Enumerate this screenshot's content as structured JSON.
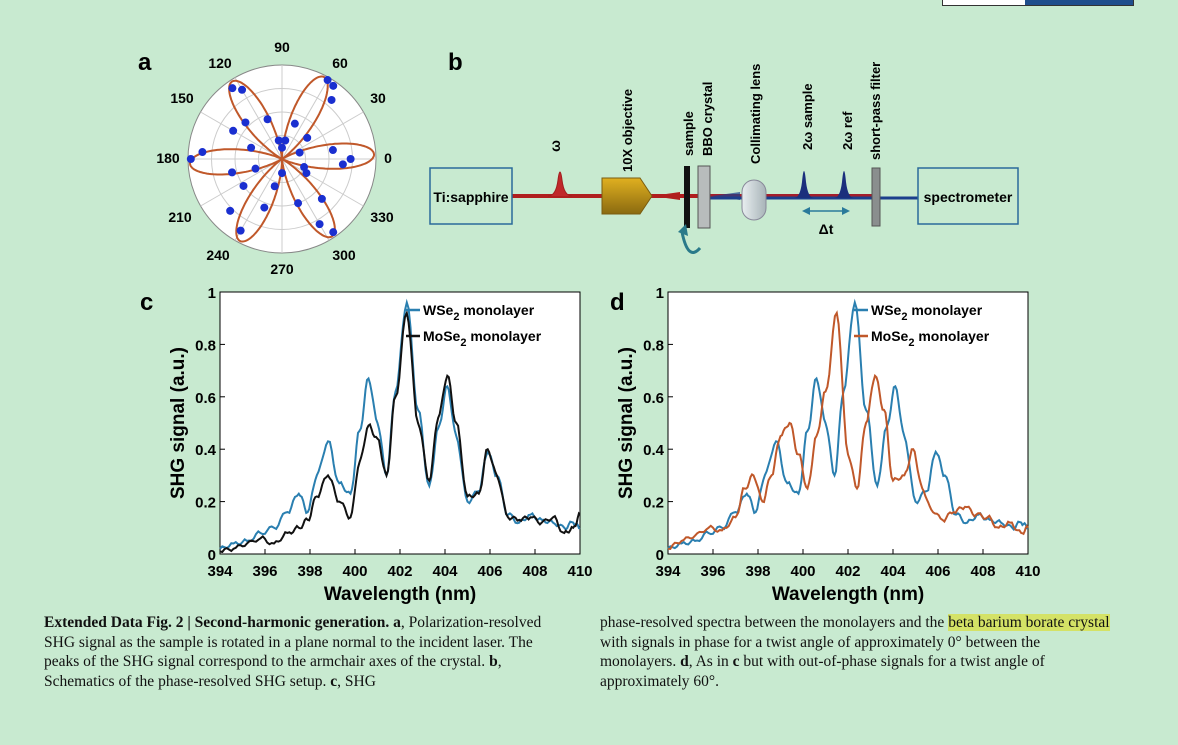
{
  "panels": {
    "a": "a",
    "b": "b",
    "c": "c",
    "d": "d"
  },
  "polar": {
    "angle_labels": [
      "90",
      "60",
      "30",
      "0",
      "330",
      "300",
      "270",
      "240",
      "210",
      "180",
      "150",
      "120"
    ]
  },
  "schematic": {
    "laser": "Ti:sapphire",
    "omega": "ω",
    "objective": "10X objective",
    "sample": "sample",
    "bbo": "BBO crystal",
    "lens": "Collimating lens",
    "two_omega_sample": "2ω sample",
    "two_omega_ref": "2ω ref",
    "filter": "short-pass filter",
    "spectrometer": "spectrometer",
    "delay": "Δt"
  },
  "chart_data": [
    {
      "type": "line",
      "panel": "c",
      "xlabel": "Wavelength (nm)",
      "ylabel": "SHG signal (a.u.)",
      "xlim": [
        394,
        410
      ],
      "ylim": [
        0,
        1
      ],
      "xticks": [
        "394",
        "396",
        "398",
        "400",
        "402",
        "404",
        "406",
        "408",
        "410"
      ],
      "yticks": [
        "0",
        "0.2",
        "0.4",
        "0.6",
        "0.8",
        "1"
      ],
      "legend_position": "top-right",
      "series": [
        {
          "name": "WSe2 monolayer",
          "color": "#2a7fb0",
          "x": [
            394,
            394.6,
            395.2,
            395.8,
            396.4,
            397,
            397.5,
            397.9,
            398.3,
            398.8,
            399.3,
            399.8,
            400.2,
            400.6,
            401.0,
            401.4,
            401.8,
            402.3,
            402.8,
            403.3,
            403.7,
            404.1,
            404.5,
            405.0,
            405.5,
            405.9,
            406.3,
            406.8,
            407.3,
            407.8,
            408.3,
            408.8,
            409.3,
            409.7,
            410
          ],
          "y": [
            0.02,
            0.04,
            0.05,
            0.08,
            0.1,
            0.16,
            0.23,
            0.16,
            0.3,
            0.43,
            0.27,
            0.23,
            0.47,
            0.67,
            0.5,
            0.3,
            0.62,
            0.96,
            0.55,
            0.26,
            0.48,
            0.64,
            0.45,
            0.2,
            0.24,
            0.39,
            0.3,
            0.15,
            0.12,
            0.15,
            0.13,
            0.12,
            0.1,
            0.12,
            0.1
          ]
        },
        {
          "name": "MoSe2 monolayer",
          "color": "#111111",
          "x": [
            394,
            394.6,
            395.2,
            395.8,
            396.4,
            397,
            397.5,
            397.9,
            398.3,
            398.8,
            399.3,
            399.8,
            400.2,
            400.6,
            401.0,
            401.4,
            401.8,
            402.3,
            402.8,
            403.3,
            403.7,
            404.1,
            404.5,
            405.0,
            405.5,
            405.9,
            406.3,
            406.8,
            407.3,
            407.8,
            408.3,
            408.8,
            409.3,
            409.7,
            410
          ],
          "y": [
            0.01,
            0.02,
            0.04,
            0.06,
            0.04,
            0.08,
            0.1,
            0.13,
            0.22,
            0.3,
            0.2,
            0.14,
            0.35,
            0.49,
            0.44,
            0.3,
            0.6,
            0.92,
            0.5,
            0.28,
            0.52,
            0.68,
            0.5,
            0.22,
            0.23,
            0.4,
            0.3,
            0.14,
            0.13,
            0.14,
            0.12,
            0.14,
            0.08,
            0.1,
            0.15
          ]
        }
      ]
    },
    {
      "type": "line",
      "panel": "d",
      "xlabel": "Wavelength (nm)",
      "ylabel": "SHG signal (a.u.)",
      "xlim": [
        394,
        410
      ],
      "ylim": [
        0,
        1
      ],
      "xticks": [
        "394",
        "396",
        "398",
        "400",
        "402",
        "404",
        "406",
        "408",
        "410"
      ],
      "yticks": [
        "0",
        "0.2",
        "0.4",
        "0.6",
        "0.8",
        "1"
      ],
      "legend_position": "top-right",
      "series": [
        {
          "name": "WSe2 monolayer",
          "color": "#2a7fb0",
          "x": [
            394,
            394.6,
            395.2,
            395.8,
            396.4,
            397,
            397.5,
            397.9,
            398.3,
            398.8,
            399.3,
            399.8,
            400.2,
            400.6,
            401.0,
            401.4,
            401.8,
            402.3,
            402.8,
            403.3,
            403.7,
            404.1,
            404.5,
            405.0,
            405.5,
            405.9,
            406.3,
            406.8,
            407.3,
            407.8,
            408.3,
            408.8,
            409.3,
            409.7,
            410
          ],
          "y": [
            0.02,
            0.04,
            0.05,
            0.08,
            0.1,
            0.16,
            0.23,
            0.16,
            0.3,
            0.43,
            0.27,
            0.23,
            0.47,
            0.67,
            0.5,
            0.3,
            0.62,
            0.96,
            0.55,
            0.26,
            0.48,
            0.64,
            0.45,
            0.2,
            0.24,
            0.39,
            0.3,
            0.15,
            0.12,
            0.15,
            0.13,
            0.12,
            0.1,
            0.12,
            0.1
          ]
        },
        {
          "name": "MoSe2 monolayer",
          "color": "#c0582a",
          "x": [
            394,
            394.6,
            395.2,
            395.8,
            396.4,
            397,
            397.4,
            397.8,
            398.2,
            398.6,
            399.0,
            399.4,
            399.8,
            400.2,
            400.6,
            401.0,
            401.5,
            402.0,
            402.4,
            402.8,
            403.2,
            403.6,
            404.0,
            404.5,
            404.9,
            405.3,
            405.7,
            406.2,
            406.7,
            407.2,
            407.7,
            408.2,
            408.7,
            409.2,
            409.7,
            410
          ],
          "y": [
            0.02,
            0.05,
            0.07,
            0.1,
            0.09,
            0.14,
            0.25,
            0.3,
            0.2,
            0.3,
            0.45,
            0.5,
            0.38,
            0.25,
            0.45,
            0.62,
            0.92,
            0.38,
            0.25,
            0.5,
            0.68,
            0.55,
            0.28,
            0.3,
            0.4,
            0.25,
            0.17,
            0.13,
            0.16,
            0.18,
            0.15,
            0.14,
            0.1,
            0.12,
            0.08,
            0.1
          ]
        }
      ]
    },
    {
      "type": "scatter",
      "panel": "a",
      "title": "",
      "angles_deg_points": [
        0,
        10,
        20,
        40,
        50,
        55,
        60,
        70,
        80,
        90,
        100,
        110,
        120,
        125,
        135,
        150,
        160,
        175,
        180,
        195,
        200,
        215,
        225,
        240,
        250,
        255,
        270,
        290,
        300,
        305,
        315,
        330,
        340,
        355
      ],
      "r_points": [
        0.73,
        0.55,
        0.2,
        0.35,
        0.82,
        0.95,
        0.97,
        0.4,
        0.2,
        0.12,
        0.2,
        0.45,
        0.85,
        0.92,
        0.55,
        0.6,
        0.35,
        0.85,
        0.97,
        0.55,
        0.3,
        0.5,
        0.78,
        0.88,
        0.55,
        0.3,
        0.15,
        0.5,
        0.8,
        0.95,
        0.6,
        0.3,
        0.25,
        0.65
      ],
      "curve": "cos^2(3θ) six-lobe pattern",
      "point_color": "#1a2fd0",
      "curve_color": "#c0582a"
    }
  ],
  "caption": {
    "left_title": "Extended Data Fig. 2 | Second-harmonic generation.",
    "left_a": "a",
    "left_text1": ", Polarization-resolved SHG signal as the sample is rotated in a plane normal to the incident laser. The peaks of the SHG signal correspond to the armchair axes of the crystal. ",
    "left_b": "b",
    "left_text2": ", Schematics of the phase-resolved SHG setup. ",
    "left_c": "c",
    "left_text3": ", SHG",
    "right_text1": "phase-resolved spectra between the monolayers and the ",
    "right_highlight": "beta barium borate crystal",
    "right_text2": " with signals in phase for a twist angle of approximately 0° between the monolayers. ",
    "right_d": "d",
    "right_text3": ", As in ",
    "right_c": "c",
    "right_text4": " but with out-of-phase signals for a twist angle of approximately 60°."
  }
}
